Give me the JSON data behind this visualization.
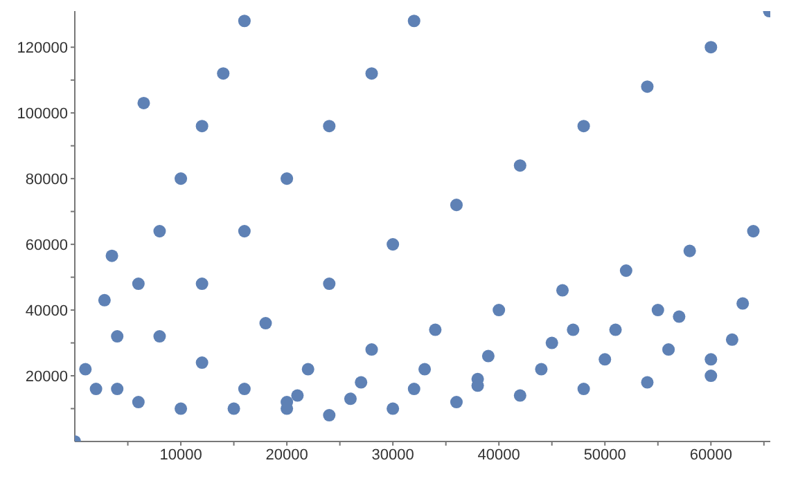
{
  "chart_data": {
    "type": "scatter",
    "marker": "circle",
    "grid": false,
    "legend": false,
    "xlim": [
      0,
      65600
    ],
    "ylim": [
      0,
      131000
    ],
    "xticks": [
      {
        "value": 5000,
        "label": null
      },
      10000,
      {
        "value": 15000,
        "label": null
      },
      20000,
      {
        "value": 25000,
        "label": null
      },
      30000,
      {
        "value": 35000,
        "label": null
      },
      40000,
      {
        "value": 45000,
        "label": null
      },
      50000,
      {
        "value": 55000,
        "label": null
      },
      60000,
      {
        "value": 65000,
        "label": null
      }
    ],
    "yticks": [
      {
        "value": 10000,
        "label": null
      },
      20000,
      {
        "value": 30000,
        "label": null
      },
      40000,
      {
        "value": 50000,
        "label": null
      },
      60000,
      {
        "value": 70000,
        "label": null
      },
      80000,
      {
        "value": 90000,
        "label": null
      },
      100000,
      {
        "value": 110000,
        "label": null
      },
      120000
    ],
    "series": [
      {
        "color": "#5e81b5",
        "x": [
          2000,
          4000,
          6000,
          8000,
          10000,
          12000,
          14000,
          16000
        ],
        "values": [
          16000,
          32000,
          48000,
          64000,
          80000,
          96000,
          112000,
          128000
        ]
      },
      {
        "color": "#5e81b5",
        "x": [
          0,
          4000,
          8000,
          12000,
          16000,
          20000,
          24000,
          28000,
          32000
        ],
        "values": [
          0,
          16000,
          32000,
          48000,
          64000,
          80000,
          96000,
          112000,
          128000
        ]
      },
      {
        "color": "#5e81b5",
        "x": [
          6000,
          12000,
          18000,
          24000,
          30000,
          36000,
          42000,
          48000,
          54000,
          60000,
          65500
        ],
        "values": [
          12000,
          24000,
          36000,
          48000,
          60000,
          72000,
          84000,
          96000,
          108000,
          120000,
          131000
        ]
      },
      {
        "color": "#5e81b5",
        "x": [
          10000,
          16000,
          22000,
          28000,
          34000,
          40000,
          46000,
          52000,
          58000,
          64000
        ],
        "values": [
          10000,
          16000,
          22000,
          28000,
          34000,
          40000,
          46000,
          52000,
          58000,
          64000
        ]
      },
      {
        "color": "#5e81b5",
        "x": [
          15000,
          21000,
          27000,
          33000,
          39000,
          45000,
          51000,
          57000,
          63000
        ],
        "values": [
          10000,
          14000,
          18000,
          22000,
          26000,
          30000,
          34000,
          38000,
          42000
        ]
      },
      {
        "color": "#5e81b5",
        "x": [
          20000,
          26000,
          32000,
          38000,
          44000,
          50000,
          56000,
          62000
        ],
        "values": [
          10000,
          13000,
          16000,
          19000,
          22000,
          25000,
          28000,
          31000
        ]
      },
      {
        "color": "#5e81b5",
        "x": [
          24000,
          30000,
          36000,
          42000,
          48000,
          54000,
          60000
        ],
        "values": [
          8000,
          10000,
          12000,
          14000,
          16000,
          18000,
          20000
        ]
      },
      {
        "color": "#5e81b5",
        "x": [
          6500,
          3500,
          2800,
          1000,
          55000,
          60000,
          38000,
          20000,
          47000
        ],
        "values": [
          103000,
          56500,
          43000,
          22000,
          40000,
          25000,
          17000,
          12000,
          34000
        ]
      }
    ]
  }
}
